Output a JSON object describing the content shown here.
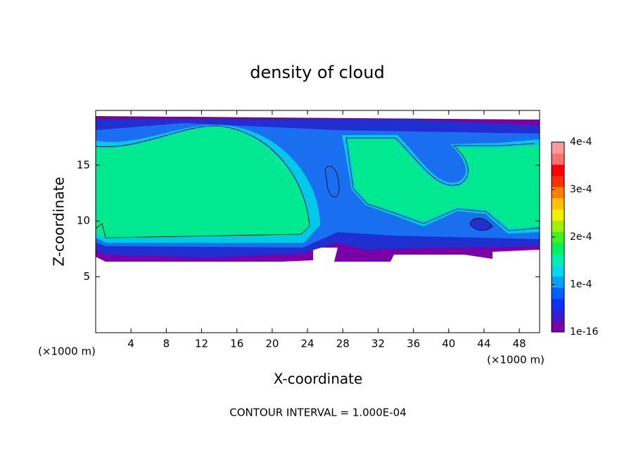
{
  "chart_data": {
    "type": "contour",
    "title": "density of cloud",
    "x_label": "X-coordinate",
    "y_label": "Z-coordinate",
    "y_unit": "(×1000 m)",
    "x_unit": "(×1000 m)",
    "footer": "CONTOUR INTERVAL = 1.000E-04",
    "xlim": [
      0,
      50.3
    ],
    "xticks": [
      4,
      8,
      12,
      16,
      20,
      24,
      28,
      32,
      36,
      40,
      44,
      48
    ],
    "ylim": [
      0,
      19.9
    ],
    "yticks": [
      5,
      10,
      15
    ],
    "colorbar": {
      "lim": [
        1e-16,
        0.0004
      ],
      "ticks": [
        {
          "value": 1e-16,
          "label": "1e-16"
        },
        {
          "value": 0.0001,
          "label": "1e-4"
        },
        {
          "value": 0.0002,
          "label": "2e-4"
        },
        {
          "value": 0.0003,
          "label": "3e-4"
        },
        {
          "value": 0.0004,
          "label": "4e-4"
        }
      ],
      "colors": [
        "#7a00a8",
        "#3a1ccc",
        "#1030f0",
        "#0060ff",
        "#00a0ff",
        "#00d8f0",
        "#00f0b0",
        "#00f060",
        "#40f020",
        "#a0f000",
        "#f0f000",
        "#ffc000",
        "#ff8000",
        "#ff3000",
        "#ff0000",
        "#ff7070",
        "#ff9a9a"
      ]
    }
  }
}
